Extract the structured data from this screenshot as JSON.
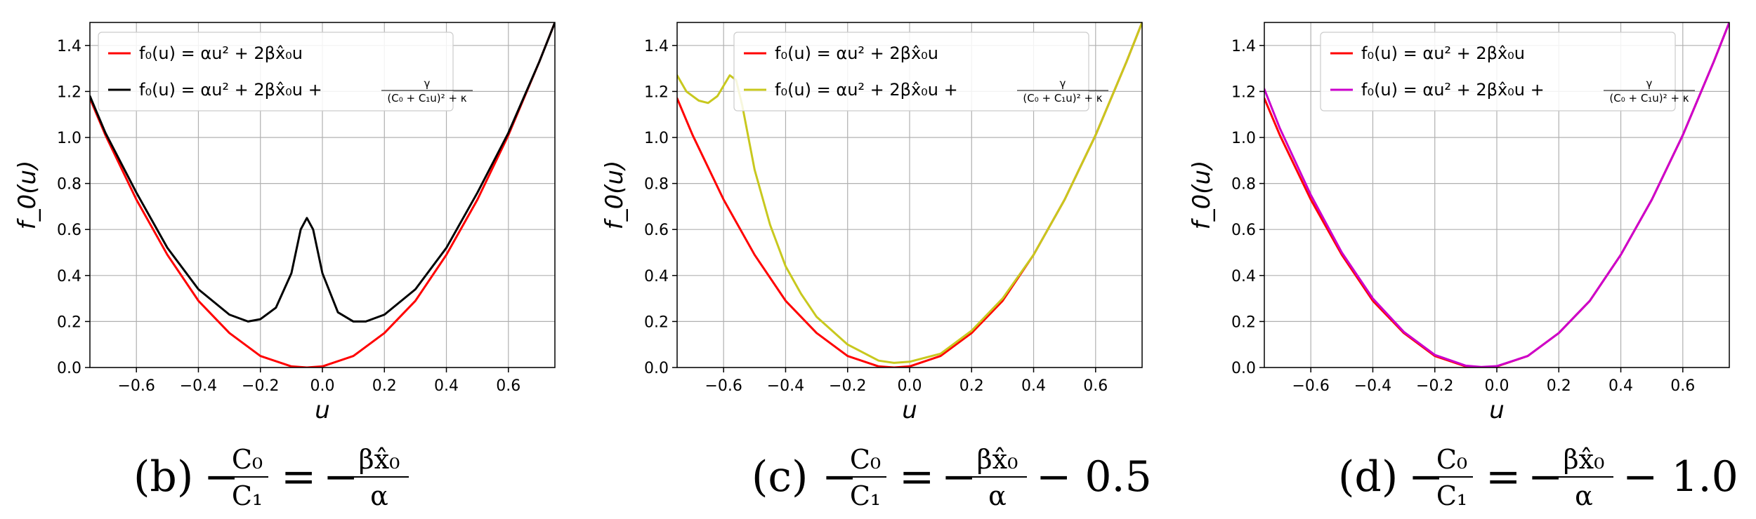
{
  "chart_data": [
    {
      "type": "line",
      "panel": "b",
      "xlabel": "u",
      "ylabel": "f_0(u)",
      "xlim": [
        -0.75,
        0.75
      ],
      "ylim": [
        0,
        1.5
      ],
      "xticks": [
        -0.6,
        -0.4,
        -0.2,
        0.0,
        0.2,
        0.4,
        0.6
      ],
      "xtick_labels": [
        "−0.6",
        "−0.4",
        "−0.2",
        "0.0",
        "0.2",
        "0.4",
        "0.6"
      ],
      "yticks": [
        0.0,
        0.2,
        0.4,
        0.6,
        0.8,
        1.0,
        1.2,
        1.4
      ],
      "ytick_labels": [
        "0.0",
        "0.2",
        "0.4",
        "0.6",
        "0.8",
        "1.0",
        "1.2",
        "1.4"
      ],
      "grid": true,
      "legend_position": "top-left",
      "caption": {
        "label": "(b)",
        "lhs_num": "C₀",
        "lhs_den": "C₁",
        "rhs_num": "βx̂₀",
        "rhs_den": "α",
        "suffix": ""
      },
      "series": [
        {
          "name": "f₀(u) = αu² + 2βx̂₀u",
          "color": "#ff0000",
          "x": [
            -0.75,
            -0.7,
            -0.6,
            -0.5,
            -0.4,
            -0.3,
            -0.2,
            -0.1,
            -0.05,
            0.0,
            0.1,
            0.2,
            0.3,
            0.4,
            0.5,
            0.6,
            0.7,
            0.75
          ],
          "y": [
            1.17,
            1.01,
            0.73,
            0.49,
            0.29,
            0.15,
            0.05,
            0.005,
            0.0,
            0.005,
            0.05,
            0.15,
            0.29,
            0.49,
            0.73,
            1.01,
            1.33,
            1.5
          ]
        },
        {
          "name": "f₀(u) = αu² + 2βx̂₀u + γ/((C₀ + C₁u)² + κ)",
          "legend_main": "f₀(u) = αu² + 2βx̂₀u + ",
          "legend_frac_num": "γ",
          "legend_frac_den": "(C₀ + C₁u)² + κ",
          "color": "#000000",
          "x": [
            -0.75,
            -0.7,
            -0.6,
            -0.5,
            -0.4,
            -0.3,
            -0.24,
            -0.2,
            -0.15,
            -0.1,
            -0.07,
            -0.05,
            -0.03,
            0.0,
            0.05,
            0.1,
            0.14,
            0.2,
            0.3,
            0.4,
            0.5,
            0.6,
            0.7,
            0.75
          ],
          "y": [
            1.18,
            1.02,
            0.76,
            0.52,
            0.34,
            0.23,
            0.2,
            0.21,
            0.26,
            0.41,
            0.6,
            0.65,
            0.6,
            0.41,
            0.24,
            0.2,
            0.2,
            0.23,
            0.34,
            0.52,
            0.76,
            1.02,
            1.33,
            1.5
          ]
        }
      ]
    },
    {
      "type": "line",
      "panel": "c",
      "xlabel": "u",
      "ylabel": "f_0(u)",
      "xlim": [
        -0.75,
        0.75
      ],
      "ylim": [
        0,
        1.5
      ],
      "xticks": [
        -0.6,
        -0.4,
        -0.2,
        0.0,
        0.2,
        0.4,
        0.6
      ],
      "xtick_labels": [
        "−0.6",
        "−0.4",
        "−0.2",
        "0.0",
        "0.2",
        "0.4",
        "0.6"
      ],
      "yticks": [
        0.0,
        0.2,
        0.4,
        0.6,
        0.8,
        1.0,
        1.2,
        1.4
      ],
      "ytick_labels": [
        "0.0",
        "0.2",
        "0.4",
        "0.6",
        "0.8",
        "1.0",
        "1.2",
        "1.4"
      ],
      "grid": true,
      "legend_position": "top-right",
      "caption": {
        "label": "(c)",
        "lhs_num": "C₀",
        "lhs_den": "C₁",
        "rhs_num": "βx̂₀",
        "rhs_den": "α",
        "suffix": "− 0.5"
      },
      "series": [
        {
          "name": "f₀(u) = αu² + 2βx̂₀u",
          "color": "#ff0000",
          "x": [
            -0.75,
            -0.7,
            -0.6,
            -0.5,
            -0.4,
            -0.3,
            -0.2,
            -0.1,
            -0.05,
            0.0,
            0.1,
            0.2,
            0.3,
            0.4,
            0.5,
            0.6,
            0.7,
            0.75
          ],
          "y": [
            1.17,
            1.01,
            0.73,
            0.49,
            0.29,
            0.15,
            0.05,
            0.005,
            0.0,
            0.005,
            0.05,
            0.15,
            0.29,
            0.49,
            0.73,
            1.01,
            1.33,
            1.5
          ]
        },
        {
          "name": "f₀(u) = αu² + 2βx̂₀u + γ/((C₀ + C₁u)² + κ)",
          "legend_main": "f₀(u) = αu² + 2βx̂₀u + ",
          "legend_frac_num": "γ",
          "legend_frac_den": "(C₀ + C₁u)² + κ",
          "color": "#c8c81e",
          "x": [
            -0.75,
            -0.72,
            -0.68,
            -0.65,
            -0.62,
            -0.58,
            -0.56,
            -0.54,
            -0.52,
            -0.5,
            -0.45,
            -0.4,
            -0.35,
            -0.3,
            -0.2,
            -0.1,
            -0.05,
            0.0,
            0.1,
            0.2,
            0.3,
            0.4,
            0.5,
            0.6,
            0.7,
            0.75
          ],
          "y": [
            1.27,
            1.2,
            1.16,
            1.15,
            1.18,
            1.27,
            1.25,
            1.14,
            1.0,
            0.86,
            0.62,
            0.44,
            0.32,
            0.22,
            0.1,
            0.03,
            0.02,
            0.025,
            0.06,
            0.16,
            0.3,
            0.49,
            0.73,
            1.01,
            1.33,
            1.5
          ]
        }
      ]
    },
    {
      "type": "line",
      "panel": "d",
      "xlabel": "u",
      "ylabel": "f_0(u)",
      "xlim": [
        -0.75,
        0.75
      ],
      "ylim": [
        0,
        1.5
      ],
      "xticks": [
        -0.6,
        -0.4,
        -0.2,
        0.0,
        0.2,
        0.4,
        0.6
      ],
      "xtick_labels": [
        "−0.6",
        "−0.4",
        "−0.2",
        "0.0",
        "0.2",
        "0.4",
        "0.6"
      ],
      "yticks": [
        0.0,
        0.2,
        0.4,
        0.6,
        0.8,
        1.0,
        1.2,
        1.4
      ],
      "ytick_labels": [
        "0.0",
        "0.2",
        "0.4",
        "0.6",
        "0.8",
        "1.0",
        "1.2",
        "1.4"
      ],
      "grid": true,
      "legend_position": "top-center",
      "caption": {
        "label": "(d)",
        "lhs_num": "C₀",
        "lhs_den": "C₁",
        "rhs_num": "βx̂₀",
        "rhs_den": "α",
        "suffix": "− 1.0"
      },
      "series": [
        {
          "name": "f₀(u) = αu² + 2βx̂₀u",
          "color": "#ff0000",
          "x": [
            -0.75,
            -0.7,
            -0.6,
            -0.5,
            -0.4,
            -0.3,
            -0.2,
            -0.1,
            -0.05,
            0.0,
            0.1,
            0.2,
            0.3,
            0.4,
            0.5,
            0.6,
            0.7,
            0.75
          ],
          "y": [
            1.17,
            1.01,
            0.73,
            0.49,
            0.29,
            0.15,
            0.05,
            0.005,
            0.0,
            0.005,
            0.05,
            0.15,
            0.29,
            0.49,
            0.73,
            1.01,
            1.33,
            1.5
          ]
        },
        {
          "name": "f₀(u) = αu² + 2βx̂₀u + γ/((C₀ + C₁u)² + κ)",
          "legend_main": "f₀(u) = αu² + 2βx̂₀u + ",
          "legend_frac_num": "γ",
          "legend_frac_den": "(C₀ + C₁u)² + κ",
          "color": "#cc00cc",
          "x": [
            -0.75,
            -0.7,
            -0.6,
            -0.5,
            -0.4,
            -0.3,
            -0.2,
            -0.1,
            -0.05,
            0.0,
            0.1,
            0.2,
            0.3,
            0.4,
            0.5,
            0.6,
            0.7,
            0.75
          ],
          "y": [
            1.21,
            1.04,
            0.75,
            0.5,
            0.3,
            0.155,
            0.055,
            0.008,
            0.002,
            0.006,
            0.05,
            0.15,
            0.29,
            0.49,
            0.73,
            1.01,
            1.33,
            1.5
          ]
        }
      ]
    }
  ]
}
